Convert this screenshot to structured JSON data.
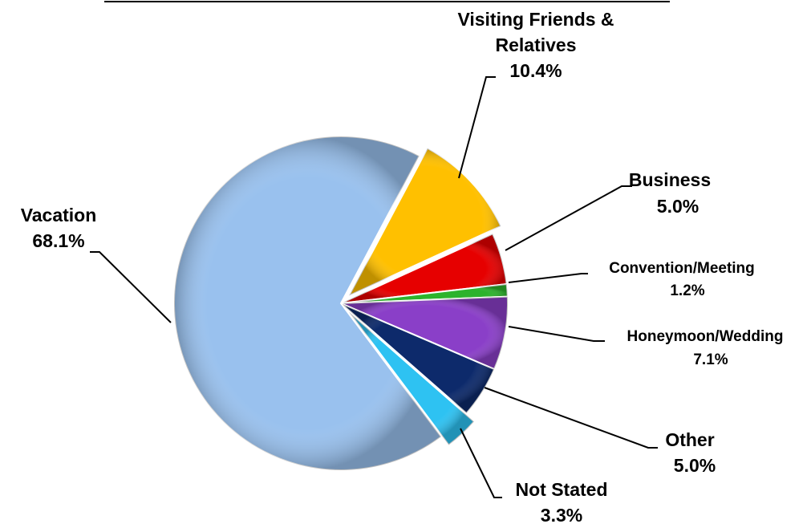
{
  "chart_data": {
    "type": "pie",
    "title": "",
    "start_angle_deg": -62,
    "slices": [
      {
        "label": [
          "Visiting Friends &",
          "Relatives"
        ],
        "value": 10.4,
        "value_label": "10.4%",
        "color": "#FFC000"
      },
      {
        "label": [
          "Business"
        ],
        "value": 5.0,
        "value_label": "5.0%",
        "color": "#E60000"
      },
      {
        "label": [
          "Convention/Meeting"
        ],
        "value": 1.2,
        "value_label": "1.2%",
        "color": "#2CB32C"
      },
      {
        "label": [
          "Honeymoon/Wedding"
        ],
        "value": 7.1,
        "value_label": "7.1%",
        "color": "#8A3FC8"
      },
      {
        "label": [
          "Other"
        ],
        "value": 5.0,
        "value_label": "5.0%",
        "color": "#0D2A6B"
      },
      {
        "label": [
          "Not Stated"
        ],
        "value": 3.3,
        "value_label": "3.3%",
        "color": "#2EC2F2"
      },
      {
        "label": [
          "Vacation"
        ],
        "value": 68.1,
        "value_label": "68.1%",
        "color": "#99C1EE"
      }
    ]
  }
}
